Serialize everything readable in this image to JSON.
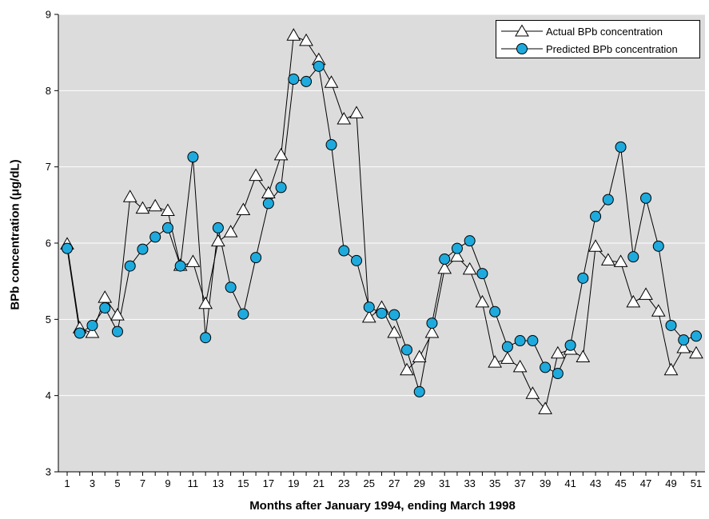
{
  "chart_data": {
    "type": "line",
    "title": "",
    "xlabel": "Months after January 1994, ending March 1998",
    "ylabel": "BPb concentration (μg/dL)",
    "xlim": [
      0.3,
      51.7
    ],
    "ylim": [
      3,
      9
    ],
    "yticks": [
      3,
      4,
      5,
      6,
      7,
      8,
      9
    ],
    "xticks": [
      1,
      3,
      5,
      7,
      9,
      11,
      13,
      15,
      17,
      19,
      21,
      23,
      25,
      27,
      29,
      31,
      33,
      35,
      37,
      39,
      41,
      43,
      45,
      47,
      49,
      51
    ],
    "grid": "horizontal",
    "legend_position": "top-right",
    "x": [
      1,
      2,
      3,
      4,
      5,
      6,
      7,
      8,
      9,
      10,
      11,
      12,
      13,
      14,
      15,
      16,
      17,
      18,
      19,
      20,
      21,
      22,
      23,
      24,
      25,
      26,
      27,
      28,
      29,
      30,
      31,
      32,
      33,
      34,
      35,
      36,
      37,
      38,
      39,
      40,
      41,
      42,
      43,
      44,
      45,
      46,
      47,
      48,
      49,
      50,
      51
    ],
    "series": [
      {
        "name": "Actual BPb concentration",
        "marker": "triangle",
        "color": "#ffffff",
        "values": [
          5.98,
          4.88,
          4.82,
          5.28,
          5.05,
          6.6,
          6.45,
          6.48,
          6.42,
          5.7,
          5.75,
          5.2,
          6.02,
          6.14,
          6.43,
          6.88,
          6.65,
          7.15,
          8.72,
          8.65,
          8.4,
          8.1,
          7.62,
          7.7,
          5.02,
          5.15,
          4.82,
          4.33,
          4.5,
          4.82,
          5.66,
          5.82,
          5.65,
          5.22,
          4.43,
          4.48,
          4.37,
          4.02,
          3.82,
          4.55,
          4.6,
          4.5,
          5.95,
          5.77,
          5.75,
          5.22,
          5.32,
          5.1,
          4.33,
          4.62,
          4.55
        ]
      },
      {
        "name": "Predicted BPb concentration",
        "marker": "circle",
        "color": "#1eaadd",
        "values": [
          5.93,
          4.82,
          4.92,
          5.15,
          4.84,
          5.7,
          5.92,
          6.08,
          6.2,
          5.7,
          7.13,
          4.76,
          6.2,
          5.42,
          5.07,
          5.81,
          6.52,
          6.73,
          8.15,
          8.12,
          8.32,
          7.29,
          5.9,
          5.77,
          5.16,
          5.08,
          5.06,
          4.6,
          4.05,
          4.95,
          5.79,
          5.93,
          6.03,
          5.6,
          5.1,
          4.64,
          4.72,
          4.72,
          4.37,
          4.29,
          4.66,
          5.54,
          6.35,
          6.57,
          7.26,
          5.82,
          6.59,
          5.96,
          4.92,
          4.73,
          4.78
        ]
      }
    ]
  }
}
